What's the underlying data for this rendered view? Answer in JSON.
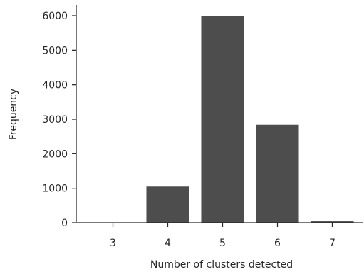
{
  "chart_data": {
    "type": "bar",
    "categories": [
      "3",
      "4",
      "5",
      "6",
      "7"
    ],
    "values": [
      0,
      1050,
      5990,
      2840,
      40
    ],
    "title": "",
    "xlabel": "Number of clusters detected",
    "ylabel": "Frequency",
    "ylim": [
      0,
      6300
    ],
    "yticks": [
      0,
      1000,
      2000,
      3000,
      4000,
      5000,
      6000
    ],
    "ytick_labels": [
      "0",
      "1000",
      "2000",
      "3000",
      "4000",
      "5000",
      "6000"
    ],
    "grid": false,
    "bar_color": "#4d4d4d",
    "axis_color": "#262626"
  }
}
